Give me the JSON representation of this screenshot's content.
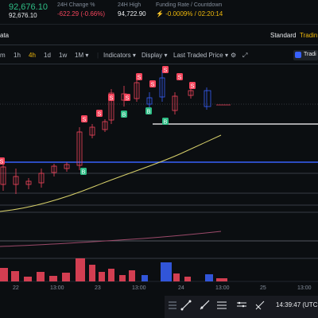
{
  "header": {
    "last_price": "92,676.10",
    "last_price_sub": "92,676.10",
    "change_label": "24H Change %",
    "change_value": "-622.29 (-0.66%)",
    "high_label": "24H High",
    "high_value": "94,722.90",
    "funding_label": "Funding Rate / Countdown",
    "funding_value": "-0.0009% / 02:20:14"
  },
  "chart_header": {
    "title": "ata",
    "standard": "Standard",
    "trading": "Tradin"
  },
  "toolbar": {
    "intervals": [
      "m",
      "1h",
      "4h",
      "1d",
      "1w",
      "1M"
    ],
    "active_interval": "4h",
    "indicators": "Indicators",
    "display": "Display",
    "last_traded_price": "Last Traded Price",
    "right_tab": "Tradi"
  },
  "markers": {
    "sell": "S",
    "buy": "B"
  },
  "x_axis": {
    "labels": [
      "22",
      "13:00",
      "23",
      "13:00",
      "24",
      "13:00",
      "25",
      "13:00"
    ]
  },
  "status": {
    "time": "14:39:47 (UTC"
  },
  "colors": {
    "up": "#2ebd85",
    "down": "#f6465d",
    "accent": "#f0b90b",
    "ma_yellow": "#d6cf6a",
    "ma_pink": "#9c4a6a",
    "blue_line": "#3861fb"
  },
  "icons": [
    "trend-line-icon",
    "ray-icon",
    "fib-icon",
    "text-tool-icon",
    "measure-icon"
  ]
}
